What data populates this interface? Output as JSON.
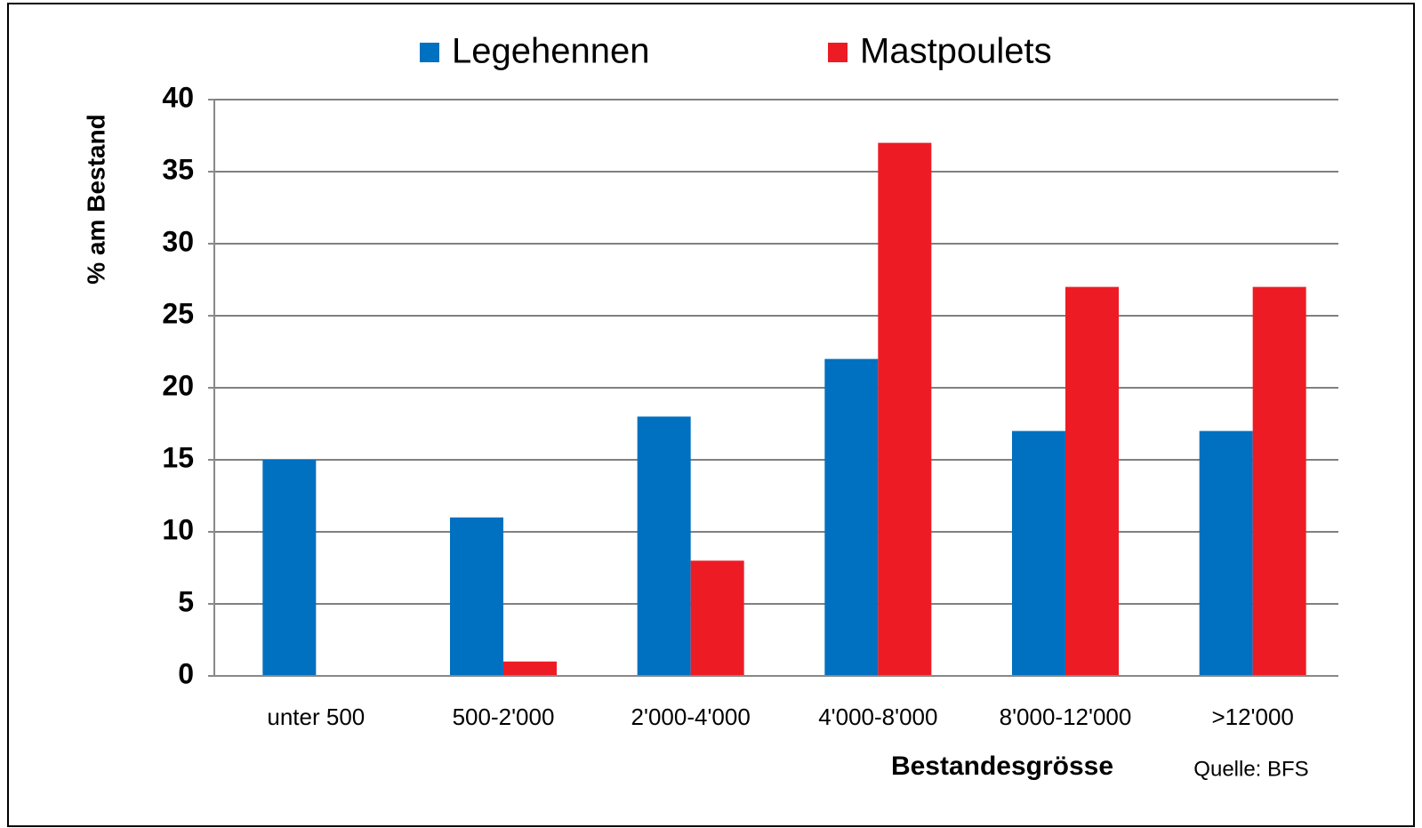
{
  "chart_data": {
    "type": "bar",
    "categories": [
      "unter 500",
      "500-2'000",
      "2'000-4'000",
      "4'000-8'000",
      "8'000-12'000",
      ">12'000"
    ],
    "series": [
      {
        "name": "Legehennen",
        "color": "#0070c0",
        "values": [
          15,
          11,
          18,
          22,
          17,
          17
        ]
      },
      {
        "name": "Mastpoulets",
        "color": "#ed1c24",
        "values": [
          0,
          1,
          8,
          37,
          27,
          27
        ]
      }
    ],
    "ylim": [
      0,
      40
    ],
    "yticks": [
      0,
      5,
      10,
      15,
      20,
      25,
      30,
      35,
      40
    ],
    "grid": true,
    "x_label": "Bestandesgrösse",
    "y_label": "% am Bestand",
    "annotation": "Quelle: BFS",
    "legend": "top"
  }
}
